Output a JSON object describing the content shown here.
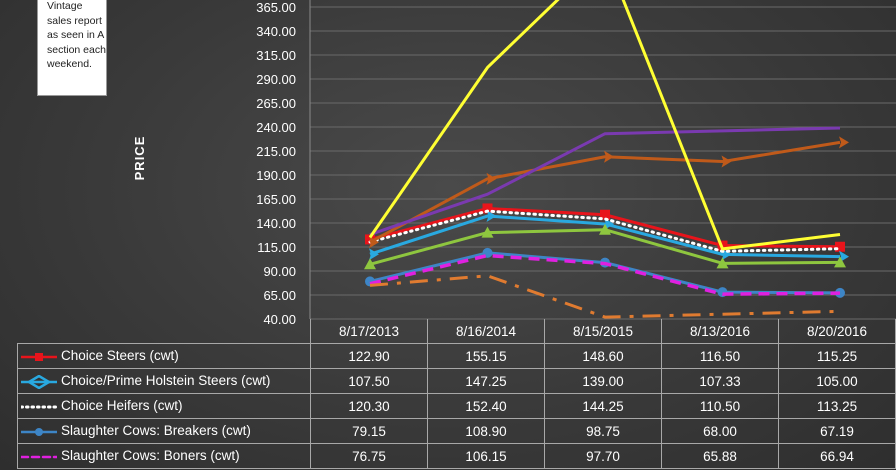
{
  "note": "Vintage sales report as seen in A section each weekend.",
  "chart_data": {
    "type": "line",
    "ylabel": "PRICE",
    "ylim": [
      40,
      375
    ],
    "yticks": [
      40,
      65,
      90,
      115,
      140,
      165,
      190,
      215,
      240,
      265,
      290,
      315,
      340,
      365
    ],
    "ytick_labels": [
      "40.00",
      "65.00",
      "90.00",
      "115.00",
      "140.00",
      "165.00",
      "190.00",
      "215.00",
      "240.00",
      "265.00",
      "290.00",
      "315.00",
      "340.00",
      "365.00"
    ],
    "categories": [
      "8/17/2013",
      "8/16/2014",
      "8/15/2015",
      "8/13/2016",
      "8/20/2016"
    ],
    "series": [
      {
        "name": "Choice Steers (cwt)",
        "color": "#e8141b",
        "marker": "square",
        "dash": "solid",
        "values": [
          122.9,
          155.15,
          148.6,
          116.5,
          115.25
        ],
        "labels": [
          "122.90",
          "155.15",
          "148.60",
          "116.50",
          "115.25"
        ]
      },
      {
        "name": "Choice/Prime Holstein Steers (cwt)",
        "color": "#29a9e0",
        "marker": "arrow",
        "dash": "solid",
        "values": [
          107.5,
          147.25,
          139.0,
          107.33,
          105.0
        ],
        "labels": [
          "107.50",
          "147.25",
          "139.00",
          "107.33",
          "105.00"
        ]
      },
      {
        "name": "Choice Heifers (cwt)",
        "color": "#ffffff",
        "marker": "none",
        "dash": "dotted",
        "values": [
          120.3,
          152.4,
          144.25,
          110.5,
          113.25
        ],
        "labels": [
          "120.30",
          "152.40",
          "144.25",
          "110.50",
          "113.25"
        ]
      },
      {
        "name": "Slaughter Cows: Breakers (cwt)",
        "color": "#3d85c6",
        "marker": "circle",
        "dash": "solid",
        "values": [
          79.15,
          108.9,
          98.75,
          68.0,
          67.19
        ],
        "labels": [
          "79.15",
          "108.90",
          "98.75",
          "68.00",
          "67.19"
        ]
      },
      {
        "name": "Slaughter Cows: Boners (cwt)",
        "color": "#e020e0",
        "marker": "none",
        "dash": "dashed",
        "values": [
          76.75,
          106.15,
          97.7,
          65.88,
          66.94
        ],
        "labels": [
          "76.75",
          "106.15",
          "97.70",
          "65.88",
          "66.94"
        ]
      },
      {
        "color": "#8ec63f",
        "marker": "triangle",
        "dash": "solid",
        "values": [
          97,
          130,
          133,
          98,
          99
        ]
      },
      {
        "color": "#e07b30",
        "marker": "none",
        "dash": "dashdot",
        "values": [
          75,
          85,
          42,
          45,
          48
        ]
      },
      {
        "color": "#c05a1a",
        "marker": "arrow",
        "dash": "solid",
        "values": [
          120,
          186,
          209,
          204,
          224
        ]
      },
      {
        "color": "#7a3ab0",
        "marker": "none",
        "dash": "solid",
        "values": [
          128,
          170,
          233,
          236,
          239
        ]
      },
      {
        "color": "#ffff33",
        "marker": "none",
        "dash": "solid",
        "values": [
          125,
          302,
          420,
          113,
          128
        ]
      }
    ]
  }
}
